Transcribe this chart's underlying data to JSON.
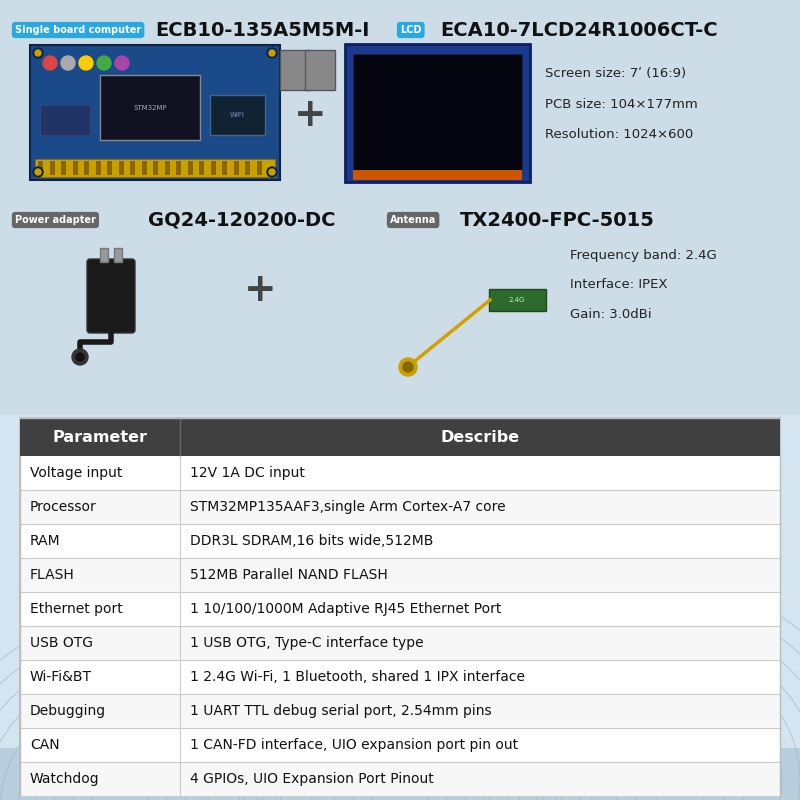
{
  "bg_color": "#d4e4f0",
  "table_header_color": "#404040",
  "table_header_text_color": "#ffffff",
  "table_border_color": "#cccccc",
  "title_sbc_label": "Single board computer",
  "title_sbc_label_bg": "#2aa8e0",
  "title_sbc_name": "ECB10-135A5M5M-I",
  "title_lcd_label": "LCD",
  "title_lcd_label_bg": "#2aa8e0",
  "title_lcd_name": "ECA10-7LCD24R1006CT-C",
  "lcd_specs": [
    "Screen size: 7ʹ (16:9)",
    "PCB size: 104×177mm",
    "Resolution: 1024×600"
  ],
  "title_pa_label": "Power adapter",
  "title_pa_label_bg": "#666666",
  "title_pa_name": "GQ24-120200-DC",
  "title_ant_label": "Antenna",
  "title_ant_label_bg": "#666666",
  "title_ant_name": "TX2400-FPC-5015",
  "ant_specs": [
    "Frequency band: 2.4G",
    "Interface: IPEX",
    "Gain: 3.0dBi"
  ],
  "table_headers": [
    "Parameter",
    "Describe"
  ],
  "table_rows": [
    [
      "Voltage input",
      "12V 1A DC input"
    ],
    [
      "Processor",
      "STM32MP135AAF3,single Arm Cortex-A7 core"
    ],
    [
      "RAM",
      "DDR3L SDRAM,16 bits wide,512MB"
    ],
    [
      "FLASH",
      "512MB Parallel NAND FLASH"
    ],
    [
      "Ethernet port",
      "1 10/100/1000M Adaptive RJ45 Ethernet Port"
    ],
    [
      "USB OTG",
      "1 USB OTG, Type-C interface type"
    ],
    [
      "Wi-Fi&BT",
      "1 2.4G Wi-Fi, 1 Bluetooth, shared 1 IPX interface"
    ],
    [
      "Debugging",
      "1 UART TTL debug serial port, 2.54mm pins"
    ],
    [
      "CAN",
      "1 CAN-FD interface, UIO expansion port pin out"
    ],
    [
      "Watchdog",
      "4 GPIOs, UIO Expansion Port Pinout"
    ]
  ]
}
